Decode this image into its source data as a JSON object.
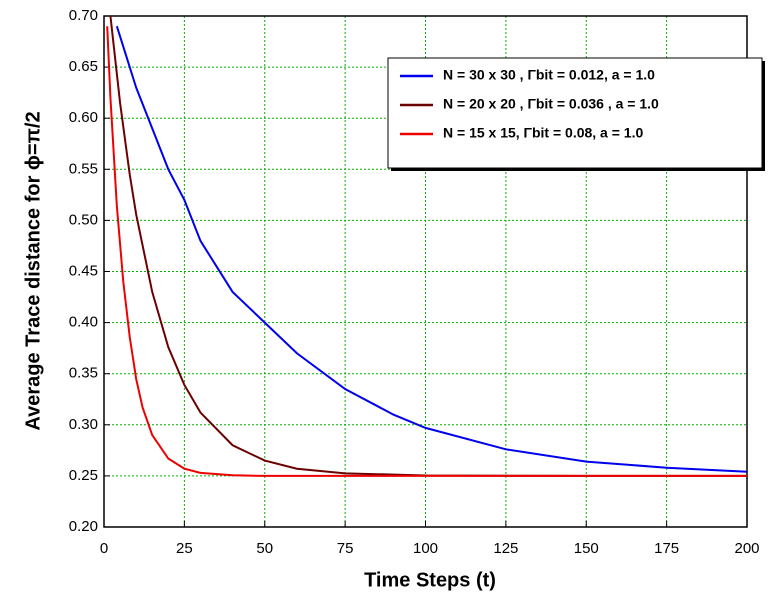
{
  "chart_data": {
    "type": "line",
    "xlabel": "Time Steps (t)",
    "ylabel": "Average Trace distance for ϕ=π/2",
    "xlim": [
      0,
      200
    ],
    "xticks": [
      0,
      25,
      50,
      75,
      100,
      125,
      150,
      175,
      200
    ],
    "ylim": [
      0.2,
      0.7
    ],
    "yticks": [
      {
        "value": 0.2,
        "label": "0.20"
      },
      0.25,
      {
        "value": 0.3,
        "label": "0.30"
      },
      0.35,
      {
        "value": 0.4,
        "label": "0.40"
      },
      0.45,
      {
        "value": 0.5,
        "label": "0.50"
      },
      0.55,
      {
        "value": 0.6,
        "label": "0.60"
      },
      0.65,
      {
        "value": 0.7,
        "label": "0.70"
      }
    ],
    "grid": true,
    "legend": "upper right",
    "series": [
      {
        "name": "N = 30 x 30 , Γbit = 0.012, a = 1.0",
        "color": "#0000ee",
        "x": [
          4,
          10,
          15,
          20,
          25,
          30,
          40,
          50,
          60,
          75,
          90,
          100,
          125,
          150,
          175,
          200
        ],
        "values": [
          0.69,
          0.63,
          0.59,
          0.55,
          0.52,
          0.48,
          0.43,
          0.4,
          0.37,
          0.335,
          0.31,
          0.297,
          0.276,
          0.264,
          0.258,
          0.254
        ]
      },
      {
        "name": "N = 20 x 20 , Γbit = 0.036 , a = 1.0",
        "color": "#6b0000",
        "x": [
          2,
          5,
          8,
          10,
          15,
          20,
          25,
          30,
          40,
          50,
          60,
          75,
          100,
          150,
          200
        ],
        "values": [
          0.7,
          0.615,
          0.545,
          0.506,
          0.43,
          0.376,
          0.339,
          0.312,
          0.28,
          0.265,
          0.257,
          0.2525,
          0.2504,
          0.25,
          0.25
        ]
      },
      {
        "name": "N = 15 x 15, Γbit = 0.08, a = 1.0",
        "color": "#ee0000",
        "x": [
          1,
          2,
          4,
          6,
          8,
          10,
          12,
          15,
          20,
          25,
          30,
          40,
          50,
          100,
          200
        ],
        "values": [
          0.69,
          0.62,
          0.514,
          0.44,
          0.386,
          0.345,
          0.317,
          0.29,
          0.267,
          0.257,
          0.253,
          0.2506,
          0.25,
          0.25,
          0.25
        ]
      }
    ]
  }
}
